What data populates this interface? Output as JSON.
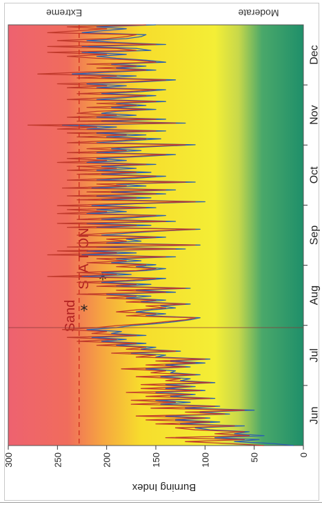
{
  "chart_data": {
    "type": "line",
    "ylabel": "Burning Index",
    "ylim": [
      0,
      300
    ],
    "yticks": [
      0,
      50,
      100,
      150,
      200,
      250,
      300
    ],
    "xticks": [
      "Jun",
      "Jul",
      "Aug",
      "Sep",
      "Oct",
      "Nov",
      "Dec"
    ],
    "xlim": [
      0,
      214
    ],
    "reference_line_value": 228,
    "marker_day": 60,
    "zone_labels": {
      "top": "Extreme",
      "bottom": "Moderate"
    },
    "annotations": [
      "Sand",
      "STA TION"
    ],
    "colors": {
      "series_red": "#c0392b",
      "series_blue": "#2b5fb0",
      "reference": "#d03020"
    },
    "series": [
      {
        "color": "red",
        "values": [
          40,
          75,
          120,
          60,
          140,
          55,
          90,
          60,
          110,
          130,
          70,
          150,
          95,
          160,
          100,
          170,
          80,
          120,
          60,
          155,
          90,
          175,
          130,
          175,
          95,
          160,
          115,
          180,
          105,
          165,
          115,
          165,
          95,
          140,
          125,
          170,
          110,
          155,
          140,
          185,
          120,
          160,
          110,
          150,
          100,
          170,
          150,
          195,
          130,
          180,
          160,
          210,
          170,
          230,
          190,
          240,
          170,
          215,
          200,
          245,
          210,
          190,
          160,
          140,
          120,
          110,
          180,
          150,
          190,
          170,
          140,
          160,
          120,
          180,
          150,
          200,
          170,
          230,
          140,
          190,
          120,
          210,
          170,
          230,
          180,
          150,
          260,
          190,
          230,
          170,
          150,
          190,
          160,
          220,
          180,
          210,
          140,
          260,
          190,
          250,
          130,
          240,
          110,
          230,
          180,
          200,
          150,
          230,
          200,
          160,
          110,
          240,
          170,
          250,
          140,
          230,
          190,
          150,
          250,
          200,
          240,
          160,
          250,
          190,
          110,
          230,
          170,
          240,
          150,
          220,
          140,
          245,
          180,
          210,
          120,
          240,
          190,
          150,
          230,
          170,
          240,
          190,
          230,
          160,
          250,
          200,
          240,
          180,
          140,
          240,
          180,
          220,
          170,
          120,
          240,
          200,
          160,
          230,
          180,
          240,
          150,
          250,
          210,
          280,
          130,
          230,
          150,
          240,
          190,
          230,
          210,
          160,
          220,
          170,
          210,
          150,
          240,
          200,
          160,
          230,
          180,
          150,
          240,
          200,
          250,
          180,
          140,
          230,
          190,
          270,
          220,
          160,
          210,
          170,
          220,
          150,
          170,
          210,
          240,
          200,
          260,
          170,
          190,
          260,
          150,
          210,
          250,
          200,
          180,
          170,
          260,
          230,
          200,
          240,
          160
        ]
      },
      {
        "color": "blue",
        "values": [
          10,
          30,
          70,
          45,
          90,
          40,
          70,
          55,
          95,
          110,
          60,
          125,
          85,
          130,
          95,
          140,
          75,
          105,
          50,
          120,
          85,
          145,
          115,
          150,
          90,
          135,
          110,
          150,
          100,
          140,
          110,
          140,
          90,
          125,
          115,
          145,
          105,
          135,
          130,
          160,
          115,
          140,
          100,
          135,
          95,
          150,
          140,
          175,
          125,
          165,
          150,
          190,
          160,
          205,
          180,
          215,
          160,
          195,
          185,
          220,
          190,
          175,
          150,
          130,
          115,
          105,
          160,
          140,
          170,
          155,
          130,
          145,
          115,
          165,
          140,
          180,
          155,
          200,
          130,
          170,
          115,
          190,
          155,
          205,
          165,
          140,
          225,
          175,
          205,
          160,
          140,
          170,
          150,
          195,
          165,
          190,
          130,
          225,
          170,
          220,
          120,
          210,
          105,
          200,
          165,
          180,
          140,
          205,
          180,
          150,
          105,
          210,
          155,
          220,
          130,
          205,
          170,
          140,
          220,
          180,
          210,
          150,
          215,
          170,
          100,
          205,
          155,
          210,
          140,
          195,
          130,
          215,
          160,
          190,
          110,
          210,
          170,
          140,
          205,
          155,
          210,
          170,
          205,
          150,
          220,
          180,
          210,
          165,
          130,
          210,
          165,
          195,
          155,
          110,
          210,
          180,
          145,
          200,
          160,
          210,
          140,
          220,
          190,
          245,
          120,
          205,
          140,
          210,
          170,
          205,
          190,
          150,
          195,
          160,
          190,
          140,
          210,
          180,
          150,
          205,
          165,
          140,
          210,
          180,
          220,
          165,
          130,
          205,
          170,
          235,
          195,
          150,
          190,
          160,
          195,
          140,
          160,
          190,
          210,
          180,
          225,
          155,
          170,
          225,
          140,
          190,
          220,
          180,
          165,
          160,
          225,
          205,
          180,
          210,
          150
        ]
      }
    ]
  }
}
